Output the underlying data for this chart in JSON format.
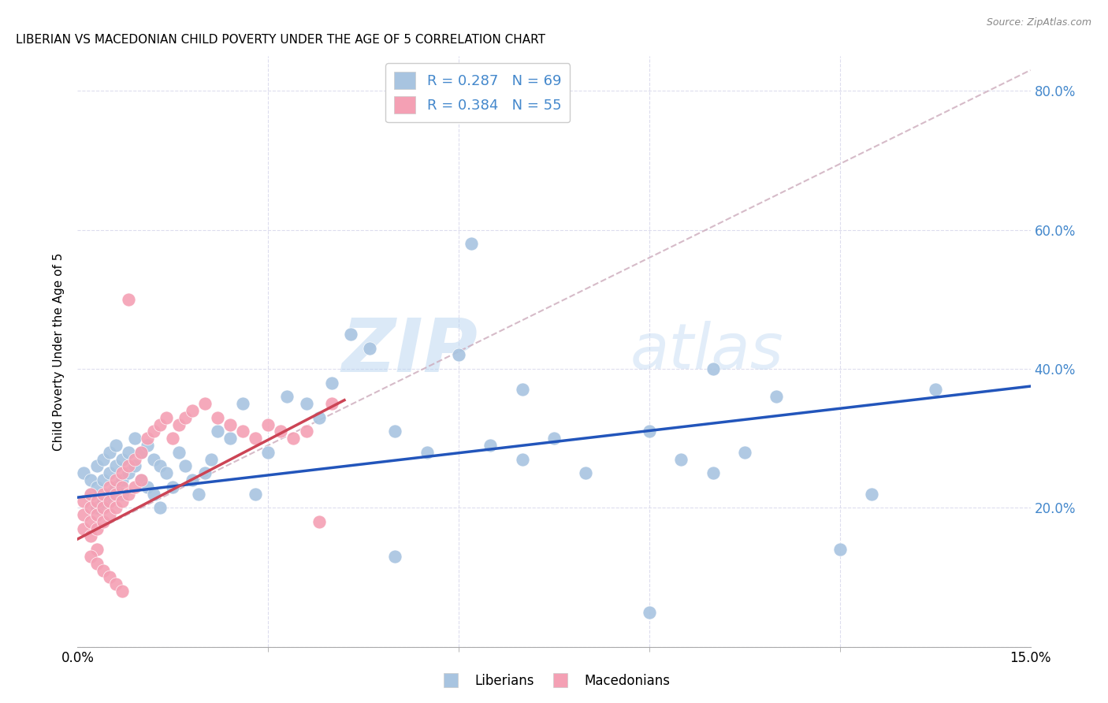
{
  "title": "LIBERIAN VS MACEDONIAN CHILD POVERTY UNDER THE AGE OF 5 CORRELATION CHART",
  "source": "Source: ZipAtlas.com",
  "ylabel_label": "Child Poverty Under the Age of 5",
  "xlim": [
    0.0,
    0.15
  ],
  "ylim": [
    0.0,
    0.85
  ],
  "watermark_zip": "ZIP",
  "watermark_atlas": "atlas",
  "legend_R1": "R = 0.287",
  "legend_N1": "N = 69",
  "legend_R2": "R = 0.384",
  "legend_N2": "N = 55",
  "liberian_color": "#a8c4e0",
  "macedonian_color": "#f4a0b4",
  "trend_liberian_color": "#2255bb",
  "trend_macedonian_color": "#cc4455",
  "trend_dash_color": "#ccaabb",
  "background_color": "#ffffff",
  "grid_color": "#ddddee",
  "right_axis_color": "#4488cc",
  "liberian_x": [
    0.001,
    0.002,
    0.002,
    0.003,
    0.003,
    0.003,
    0.004,
    0.004,
    0.004,
    0.005,
    0.005,
    0.005,
    0.006,
    0.006,
    0.006,
    0.007,
    0.007,
    0.007,
    0.008,
    0.008,
    0.009,
    0.009,
    0.01,
    0.01,
    0.011,
    0.011,
    0.012,
    0.012,
    0.013,
    0.013,
    0.014,
    0.015,
    0.016,
    0.017,
    0.018,
    0.019,
    0.02,
    0.021,
    0.022,
    0.024,
    0.026,
    0.028,
    0.03,
    0.033,
    0.036,
    0.038,
    0.04,
    0.043,
    0.046,
    0.05,
    0.055,
    0.06,
    0.065,
    0.07,
    0.075,
    0.08,
    0.09,
    0.095,
    0.1,
    0.105,
    0.11,
    0.12,
    0.125,
    0.062,
    0.05,
    0.07,
    0.09,
    0.1,
    0.135
  ],
  "liberian_y": [
    0.25,
    0.24,
    0.22,
    0.26,
    0.23,
    0.2,
    0.27,
    0.24,
    0.21,
    0.28,
    0.25,
    0.22,
    0.29,
    0.26,
    0.23,
    0.27,
    0.24,
    0.22,
    0.28,
    0.25,
    0.3,
    0.26,
    0.28,
    0.24,
    0.29,
    0.23,
    0.27,
    0.22,
    0.26,
    0.2,
    0.25,
    0.23,
    0.28,
    0.26,
    0.24,
    0.22,
    0.25,
    0.27,
    0.31,
    0.3,
    0.35,
    0.22,
    0.28,
    0.36,
    0.35,
    0.33,
    0.38,
    0.45,
    0.43,
    0.31,
    0.28,
    0.42,
    0.29,
    0.37,
    0.3,
    0.25,
    0.31,
    0.27,
    0.4,
    0.28,
    0.36,
    0.14,
    0.22,
    0.58,
    0.13,
    0.27,
    0.05,
    0.25,
    0.37
  ],
  "macedonian_x": [
    0.001,
    0.001,
    0.001,
    0.002,
    0.002,
    0.002,
    0.002,
    0.003,
    0.003,
    0.003,
    0.003,
    0.004,
    0.004,
    0.004,
    0.005,
    0.005,
    0.005,
    0.006,
    0.006,
    0.006,
    0.007,
    0.007,
    0.007,
    0.008,
    0.008,
    0.009,
    0.009,
    0.01,
    0.01,
    0.011,
    0.012,
    0.013,
    0.014,
    0.015,
    0.016,
    0.017,
    0.018,
    0.02,
    0.022,
    0.024,
    0.026,
    0.028,
    0.03,
    0.032,
    0.034,
    0.036,
    0.038,
    0.04,
    0.002,
    0.003,
    0.004,
    0.005,
    0.006,
    0.007,
    0.008
  ],
  "macedonian_y": [
    0.21,
    0.19,
    0.17,
    0.22,
    0.2,
    0.18,
    0.16,
    0.21,
    0.19,
    0.17,
    0.14,
    0.22,
    0.2,
    0.18,
    0.23,
    0.21,
    0.19,
    0.24,
    0.22,
    0.2,
    0.25,
    0.23,
    0.21,
    0.26,
    0.22,
    0.27,
    0.23,
    0.28,
    0.24,
    0.3,
    0.31,
    0.32,
    0.33,
    0.3,
    0.32,
    0.33,
    0.34,
    0.35,
    0.33,
    0.32,
    0.31,
    0.3,
    0.32,
    0.31,
    0.3,
    0.31,
    0.18,
    0.35,
    0.13,
    0.12,
    0.11,
    0.1,
    0.09,
    0.08,
    0.5
  ],
  "trend_lib_x0": 0.0,
  "trend_lib_x1": 0.15,
  "trend_lib_y0": 0.215,
  "trend_lib_y1": 0.375,
  "trend_mac_x0": 0.0,
  "trend_mac_x1": 0.042,
  "trend_mac_y0": 0.155,
  "trend_mac_y1": 0.355,
  "trend_dash_x0": 0.0,
  "trend_dash_x1": 0.15,
  "trend_dash_y0": 0.155,
  "trend_dash_y1": 0.83
}
